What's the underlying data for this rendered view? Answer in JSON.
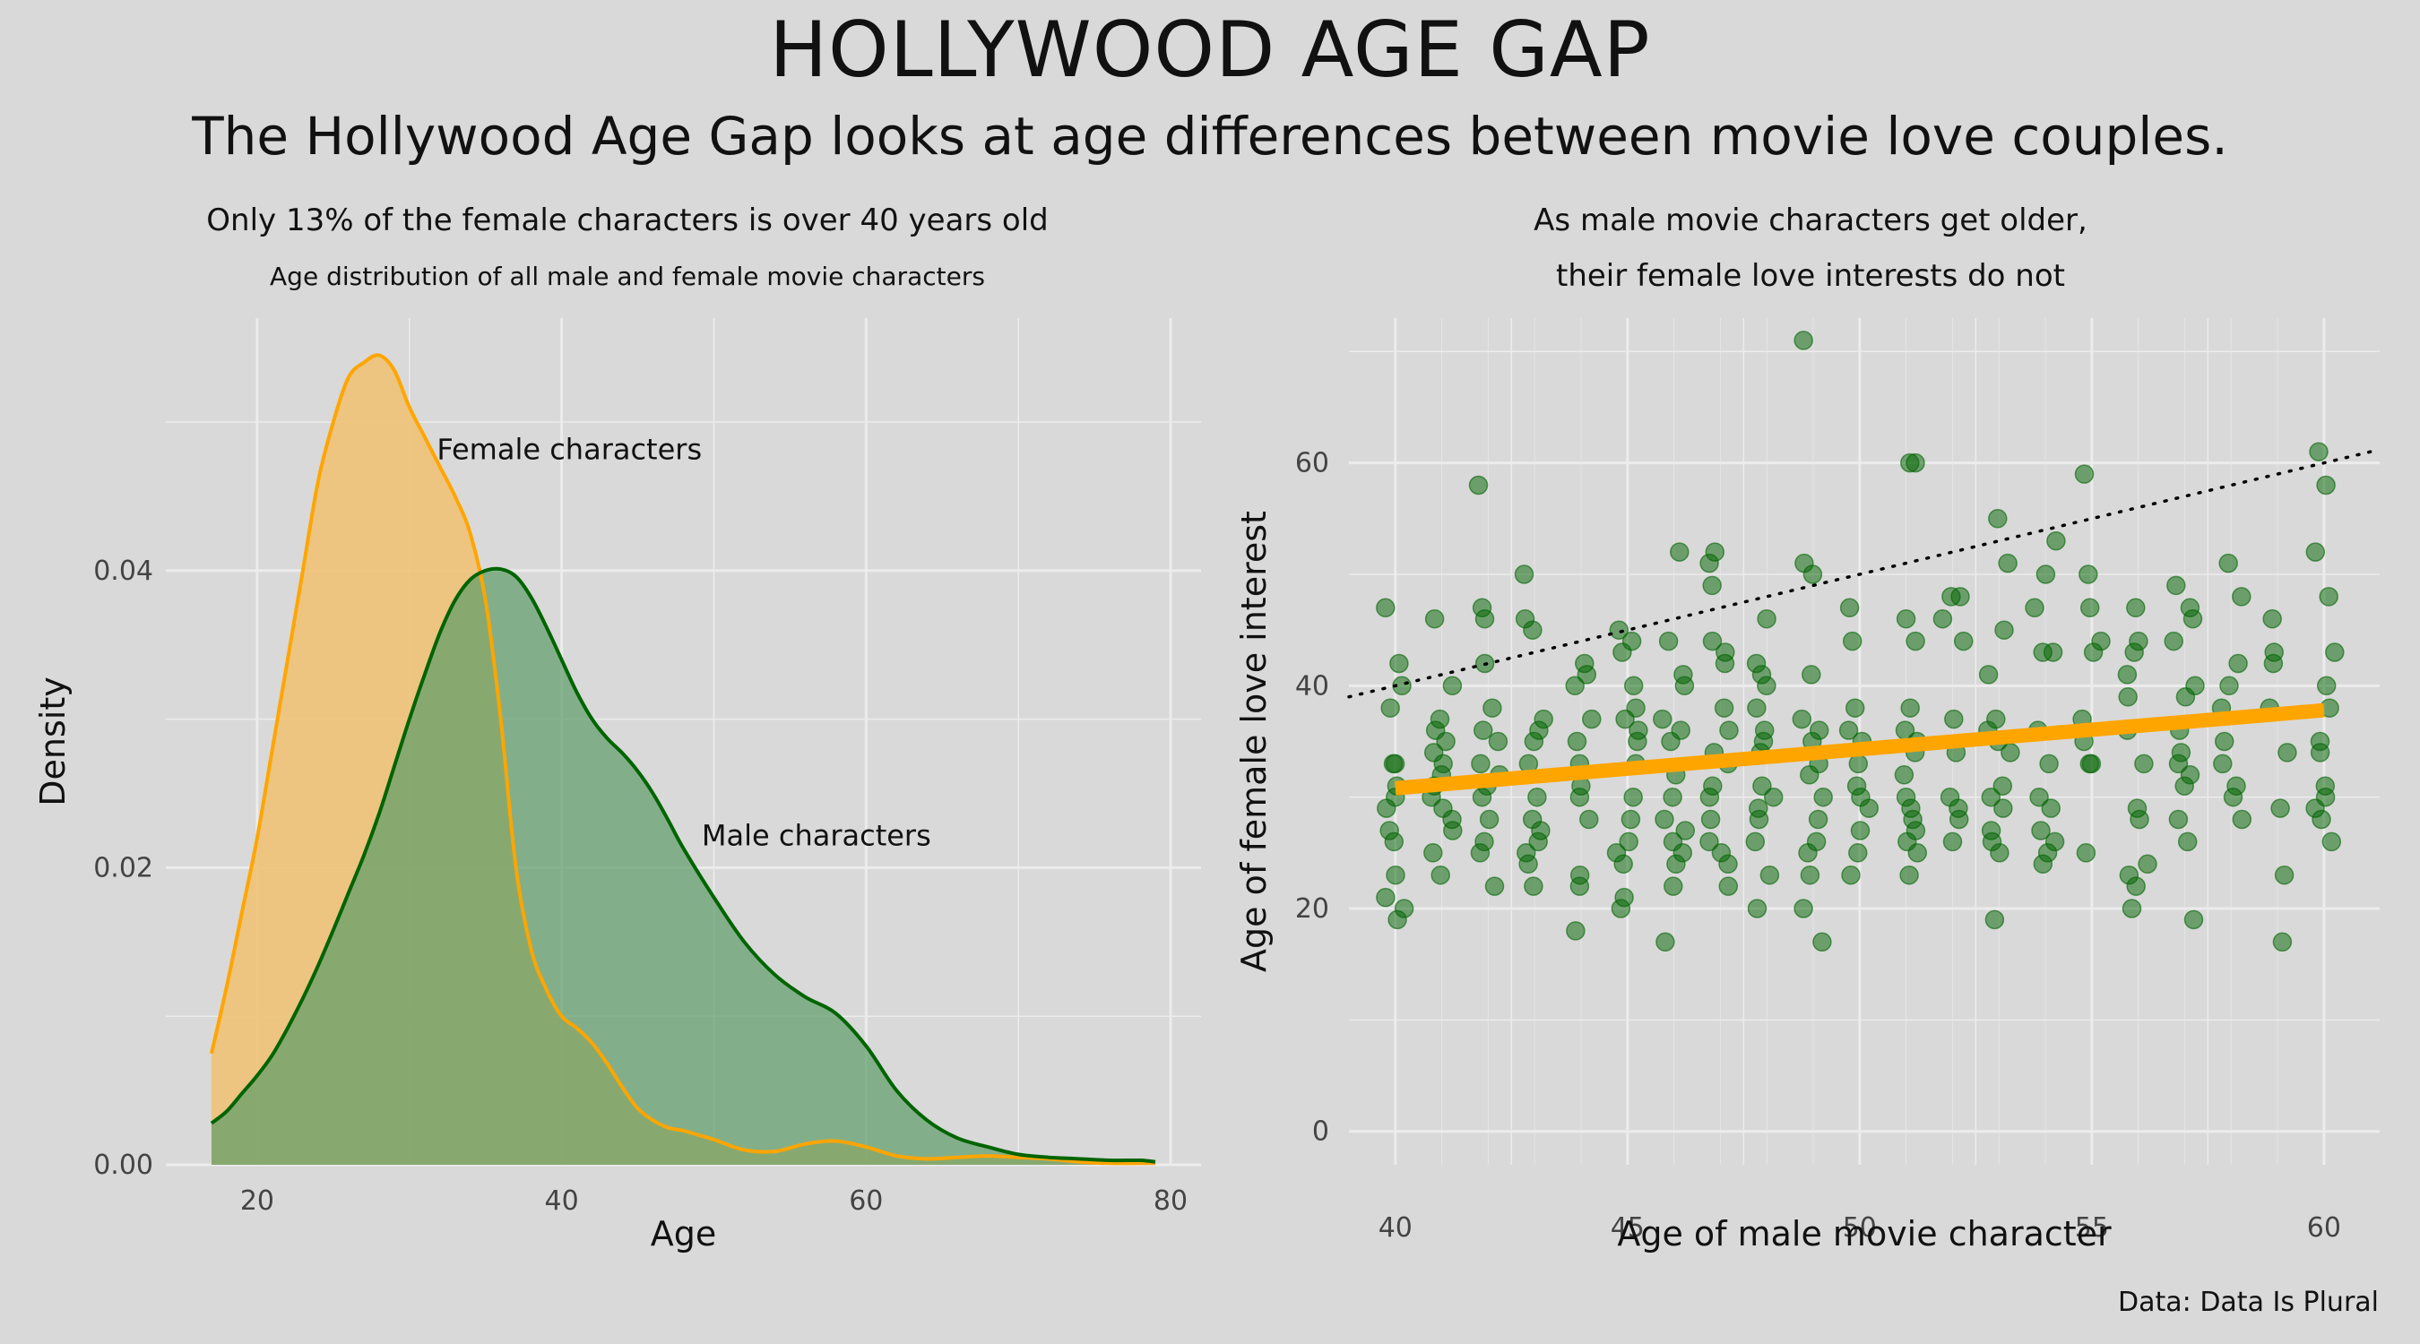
{
  "title": "HOLLYWOOD AGE GAP",
  "subtitle": "The Hollywood Age Gap looks at age differences between movie love couples.",
  "caption": "Data: Data Is Plural",
  "colors": {
    "background": "#d9d9d9",
    "grid": "#ececec",
    "female": "#ffa500",
    "female_fill": "#f0c070",
    "male": "#006400",
    "male_fill": "#5f9e6a",
    "trend": "#ffa500",
    "reference": "#000000"
  },
  "chart_data": [
    {
      "type": "area",
      "title": "Only 13% of the female characters is over 40 years old",
      "subtitle": "Age distribution of all male and female movie characters",
      "xlabel": "Age",
      "ylabel": "Density",
      "xlim": [
        14,
        82
      ],
      "ylim": [
        0,
        0.057
      ],
      "xticks": [
        "20",
        "40",
        "60",
        "80"
      ],
      "yticks": [
        "0.00",
        "0.02",
        "0.04"
      ],
      "grid": true,
      "series": [
        {
          "name": "Female characters",
          "color": "#ffa500",
          "x": [
            17,
            18,
            19,
            20,
            21,
            22,
            23,
            24,
            25,
            26,
            27,
            28,
            29,
            30,
            31,
            32,
            33,
            34,
            35,
            36,
            37,
            38,
            39,
            40,
            41,
            42,
            43,
            44,
            45,
            46,
            47,
            48,
            49,
            50,
            52,
            54,
            56,
            58,
            60,
            62,
            64,
            66,
            68,
            70,
            72,
            74,
            76,
            78,
            79
          ],
          "y": [
            0.0075,
            0.012,
            0.017,
            0.022,
            0.028,
            0.034,
            0.04,
            0.046,
            0.05,
            0.053,
            0.054,
            0.0545,
            0.0535,
            0.051,
            0.049,
            0.047,
            0.045,
            0.0425,
            0.038,
            0.03,
            0.02,
            0.0145,
            0.0118,
            0.01,
            0.0092,
            0.0082,
            0.0068,
            0.0052,
            0.0038,
            0.003,
            0.0025,
            0.0023,
            0.002,
            0.0017,
            0.001,
            0.0009,
            0.0014,
            0.0016,
            0.0012,
            0.0006,
            0.0004,
            0.0005,
            0.0006,
            0.0005,
            0.0004,
            0.0002,
            0.0001,
            0.0001,
            0.0001
          ]
        },
        {
          "name": "Male characters",
          "color": "#006400",
          "x": [
            17,
            18,
            19,
            20,
            21,
            22,
            23,
            24,
            25,
            26,
            27,
            28,
            29,
            30,
            31,
            32,
            33,
            34,
            35,
            36,
            37,
            38,
            39,
            40,
            41,
            42,
            43,
            44,
            45,
            46,
            47,
            48,
            50,
            52,
            54,
            56,
            58,
            60,
            62,
            64,
            66,
            68,
            70,
            72,
            74,
            76,
            78,
            79
          ],
          "y": [
            0.0028,
            0.0036,
            0.0048,
            0.006,
            0.0074,
            0.0092,
            0.0112,
            0.0134,
            0.0158,
            0.0183,
            0.0208,
            0.0236,
            0.0268,
            0.03,
            0.033,
            0.0358,
            0.038,
            0.0394,
            0.04,
            0.0401,
            0.0396,
            0.0382,
            0.0362,
            0.034,
            0.0318,
            0.03,
            0.0287,
            0.0277,
            0.0265,
            0.025,
            0.0232,
            0.0213,
            0.018,
            0.015,
            0.0128,
            0.0113,
            0.0102,
            0.008,
            0.005,
            0.003,
            0.0018,
            0.0012,
            0.0007,
            0.0005,
            0.0004,
            0.0003,
            0.0003,
            0.0002
          ]
        }
      ],
      "annotations": [
        "Female characters",
        "Male characters"
      ]
    },
    {
      "type": "scatter",
      "title": [
        "As male movie characters get older,",
        "their female love interests do not"
      ],
      "xlabel": "Age of male movie character",
      "ylabel": "Age of female love interest",
      "xlim": [
        39,
        61.2
      ],
      "ylim": [
        -3,
        73
      ],
      "xticks": [
        "40",
        "45",
        "50",
        "55",
        "60"
      ],
      "yticks": [
        "0",
        "20",
        "40",
        "60"
      ],
      "grid": true,
      "point_color": "#006400",
      "trend": {
        "x": [
          40,
          60
        ],
        "y": [
          30.8,
          37.8
        ],
        "color": "#ffa500"
      },
      "reference_line": {
        "x": [
          39,
          61.2
        ],
        "y": [
          39,
          61.2
        ],
        "style": "dotted"
      },
      "points": [
        [
          40,
          33
        ],
        [
          40,
          31
        ],
        [
          40,
          29
        ],
        [
          40,
          27
        ],
        [
          40,
          26
        ],
        [
          40,
          23
        ],
        [
          40,
          21
        ],
        [
          40,
          20
        ],
        [
          40,
          19
        ],
        [
          40,
          33
        ],
        [
          40,
          38
        ],
        [
          40,
          40
        ],
        [
          40,
          42
        ],
        [
          40,
          47
        ],
        [
          40,
          30
        ],
        [
          41,
          36
        ],
        [
          41,
          35
        ],
        [
          41,
          34
        ],
        [
          41,
          33
        ],
        [
          41,
          32
        ],
        [
          41,
          31
        ],
        [
          41,
          30
        ],
        [
          41,
          28
        ],
        [
          41,
          27
        ],
        [
          41,
          25
        ],
        [
          41,
          23
        ],
        [
          41,
          40
        ],
        [
          41,
          46
        ],
        [
          41,
          37
        ],
        [
          41,
          29
        ],
        [
          42,
          38
        ],
        [
          42,
          36
        ],
        [
          42,
          33
        ],
        [
          42,
          32
        ],
        [
          42,
          31
        ],
        [
          42,
          30
        ],
        [
          42,
          28
        ],
        [
          42,
          26
        ],
        [
          42,
          25
        ],
        [
          42,
          22
        ],
        [
          42,
          42
        ],
        [
          42,
          46
        ],
        [
          42,
          58
        ],
        [
          42,
          35
        ],
        [
          42,
          47
        ],
        [
          43,
          37
        ],
        [
          43,
          35
        ],
        [
          43,
          33
        ],
        [
          43,
          30
        ],
        [
          43,
          28
        ],
        [
          43,
          27
        ],
        [
          43,
          26
        ],
        [
          43,
          25
        ],
        [
          43,
          24
        ],
        [
          43,
          22
        ],
        [
          43,
          46
        ],
        [
          43,
          50
        ],
        [
          43,
          45
        ],
        [
          43,
          36
        ],
        [
          44,
          42
        ],
        [
          44,
          37
        ],
        [
          44,
          35
        ],
        [
          44,
          33
        ],
        [
          44,
          31
        ],
        [
          44,
          30
        ],
        [
          44,
          28
        ],
        [
          44,
          23
        ],
        [
          44,
          22
        ],
        [
          44,
          18
        ],
        [
          44,
          40
        ],
        [
          44,
          41
        ],
        [
          45,
          45
        ],
        [
          45,
          43
        ],
        [
          45,
          40
        ],
        [
          45,
          38
        ],
        [
          45,
          36
        ],
        [
          45,
          35
        ],
        [
          45,
          33
        ],
        [
          45,
          30
        ],
        [
          45,
          28
        ],
        [
          45,
          26
        ],
        [
          45,
          25
        ],
        [
          45,
          24
        ],
        [
          45,
          21
        ],
        [
          45,
          20
        ],
        [
          45,
          37
        ],
        [
          45,
          44
        ],
        [
          46,
          52
        ],
        [
          46,
          44
        ],
        [
          46,
          40
        ],
        [
          46,
          37
        ],
        [
          46,
          35
        ],
        [
          46,
          32
        ],
        [
          46,
          30
        ],
        [
          46,
          28
        ],
        [
          46,
          27
        ],
        [
          46,
          26
        ],
        [
          46,
          25
        ],
        [
          46,
          24
        ],
        [
          46,
          22
        ],
        [
          46,
          17
        ],
        [
          46,
          36
        ],
        [
          46,
          41
        ],
        [
          47,
          52
        ],
        [
          47,
          51
        ],
        [
          47,
          44
        ],
        [
          47,
          43
        ],
        [
          47,
          42
        ],
        [
          47,
          38
        ],
        [
          47,
          36
        ],
        [
          47,
          34
        ],
        [
          47,
          33
        ],
        [
          47,
          31
        ],
        [
          47,
          30
        ],
        [
          47,
          28
        ],
        [
          47,
          26
        ],
        [
          47,
          25
        ],
        [
          47,
          24
        ],
        [
          47,
          22
        ],
        [
          47,
          49
        ],
        [
          48,
          46
        ],
        [
          48,
          42
        ],
        [
          48,
          41
        ],
        [
          48,
          40
        ],
        [
          48,
          38
        ],
        [
          48,
          35
        ],
        [
          48,
          34
        ],
        [
          48,
          31
        ],
        [
          48,
          30
        ],
        [
          48,
          29
        ],
        [
          48,
          28
        ],
        [
          48,
          26
        ],
        [
          48,
          23
        ],
        [
          48,
          20
        ],
        [
          48,
          36
        ],
        [
          49,
          51
        ],
        [
          49,
          50
        ],
        [
          49,
          41
        ],
        [
          49,
          37
        ],
        [
          49,
          36
        ],
        [
          49,
          35
        ],
        [
          49,
          33
        ],
        [
          49,
          32
        ],
        [
          49,
          30
        ],
        [
          49,
          28
        ],
        [
          49,
          26
        ],
        [
          49,
          25
        ],
        [
          49,
          23
        ],
        [
          49,
          20
        ],
        [
          49,
          17
        ],
        [
          49,
          71
        ],
        [
          50,
          47
        ],
        [
          50,
          44
        ],
        [
          50,
          38
        ],
        [
          50,
          36
        ],
        [
          50,
          35
        ],
        [
          50,
          33
        ],
        [
          50,
          31
        ],
        [
          50,
          30
        ],
        [
          50,
          29
        ],
        [
          50,
          27
        ],
        [
          50,
          25
        ],
        [
          50,
          23
        ],
        [
          51,
          60
        ],
        [
          51,
          60
        ],
        [
          51,
          46
        ],
        [
          51,
          44
        ],
        [
          51,
          38
        ],
        [
          51,
          36
        ],
        [
          51,
          35
        ],
        [
          51,
          34
        ],
        [
          51,
          32
        ],
        [
          51,
          30
        ],
        [
          51,
          29
        ],
        [
          51,
          28
        ],
        [
          51,
          27
        ],
        [
          51,
          26
        ],
        [
          51,
          25
        ],
        [
          51,
          23
        ],
        [
          52,
          48
        ],
        [
          52,
          48
        ],
        [
          52,
          46
        ],
        [
          52,
          44
        ],
        [
          52,
          37
        ],
        [
          52,
          34
        ],
        [
          52,
          30
        ],
        [
          52,
          29
        ],
        [
          52,
          28
        ],
        [
          52,
          26
        ],
        [
          53,
          55
        ],
        [
          53,
          51
        ],
        [
          53,
          45
        ],
        [
          53,
          41
        ],
        [
          53,
          37
        ],
        [
          53,
          35
        ],
        [
          53,
          34
        ],
        [
          53,
          31
        ],
        [
          53,
          30
        ],
        [
          53,
          29
        ],
        [
          53,
          27
        ],
        [
          53,
          26
        ],
        [
          53,
          25
        ],
        [
          53,
          19
        ],
        [
          53,
          36
        ],
        [
          54,
          53
        ],
        [
          54,
          50
        ],
        [
          54,
          47
        ],
        [
          54,
          43
        ],
        [
          54,
          36
        ],
        [
          54,
          33
        ],
        [
          54,
          30
        ],
        [
          54,
          29
        ],
        [
          54,
          27
        ],
        [
          54,
          26
        ],
        [
          54,
          25
        ],
        [
          54,
          24
        ],
        [
          54,
          43
        ],
        [
          55,
          59
        ],
        [
          55,
          50
        ],
        [
          55,
          47
        ],
        [
          55,
          44
        ],
        [
          55,
          43
        ],
        [
          55,
          37
        ],
        [
          55,
          35
        ],
        [
          55,
          33
        ],
        [
          55,
          25
        ],
        [
          55,
          33
        ],
        [
          56,
          44
        ],
        [
          56,
          43
        ],
        [
          56,
          41
        ],
        [
          56,
          39
        ],
        [
          56,
          33
        ],
        [
          56,
          29
        ],
        [
          56,
          28
        ],
        [
          56,
          24
        ],
        [
          56,
          23
        ],
        [
          56,
          22
        ],
        [
          56,
          20
        ],
        [
          56,
          47
        ],
        [
          56,
          36
        ],
        [
          57,
          49
        ],
        [
          57,
          47
        ],
        [
          57,
          46
        ],
        [
          57,
          44
        ],
        [
          57,
          39
        ],
        [
          57,
          36
        ],
        [
          57,
          34
        ],
        [
          57,
          33
        ],
        [
          57,
          32
        ],
        [
          57,
          31
        ],
        [
          57,
          28
        ],
        [
          57,
          26
        ],
        [
          57,
          19
        ],
        [
          57,
          40
        ],
        [
          58,
          51
        ],
        [
          58,
          48
        ],
        [
          58,
          42
        ],
        [
          58,
          40
        ],
        [
          58,
          38
        ],
        [
          58,
          35
        ],
        [
          58,
          33
        ],
        [
          58,
          31
        ],
        [
          58,
          30
        ],
        [
          58,
          28
        ],
        [
          59,
          46
        ],
        [
          59,
          43
        ],
        [
          59,
          42
        ],
        [
          59,
          38
        ],
        [
          59,
          34
        ],
        [
          59,
          29
        ],
        [
          59,
          23
        ],
        [
          59,
          17
        ],
        [
          60,
          61
        ],
        [
          60,
          58
        ],
        [
          60,
          52
        ],
        [
          60,
          48
        ],
        [
          60,
          43
        ],
        [
          60,
          40
        ],
        [
          60,
          35
        ],
        [
          60,
          34
        ],
        [
          60,
          31
        ],
        [
          60,
          30
        ],
        [
          60,
          29
        ],
        [
          60,
          28
        ],
        [
          60,
          26
        ],
        [
          60,
          38
        ]
      ]
    }
  ]
}
